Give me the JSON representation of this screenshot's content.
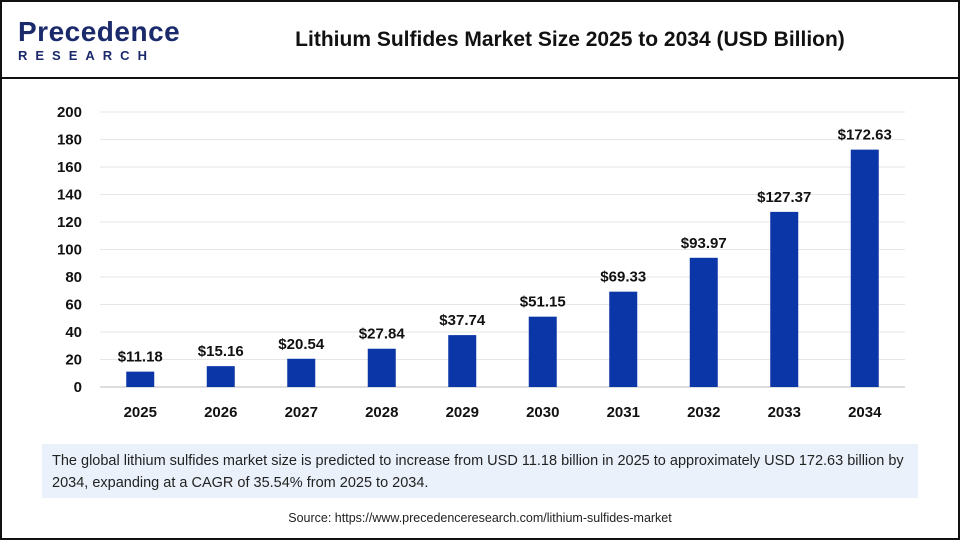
{
  "brand": {
    "line1": "Precedence",
    "line2": "RESEARCH"
  },
  "title": "Lithium Sulfides Market Size 2025 to 2034 (USD Billion)",
  "note": "The global lithium sulfides market size is predicted to increase from USD 11.18 billion in 2025 to approximately USD 172.63 billion by 2034, expanding at a CAGR of 35.54% from 2025 to 2034.",
  "source": "Source: https://www.precedenceresearch.com/lithium-sulfides-market",
  "chart_data": {
    "type": "bar",
    "title": "Lithium Sulfides Market Size 2025 to 2034 (USD Billion)",
    "categories": [
      "2025",
      "2026",
      "2027",
      "2028",
      "2029",
      "2030",
      "2031",
      "2032",
      "2033",
      "2034"
    ],
    "values": [
      11.18,
      15.16,
      20.54,
      27.84,
      37.74,
      51.15,
      69.33,
      93.97,
      127.37,
      172.63
    ],
    "labels": [
      "$11.18",
      "$15.16",
      "$20.54",
      "$27.84",
      "$37.74",
      "$51.15",
      "$69.33",
      "$93.97",
      "$127.37",
      "$172.63"
    ],
    "yticks": [
      0,
      20,
      40,
      60,
      80,
      100,
      120,
      140,
      160,
      180,
      200
    ],
    "ylim": [
      0,
      200
    ],
    "grid": true,
    "bar_color": "#0b36a8"
  }
}
